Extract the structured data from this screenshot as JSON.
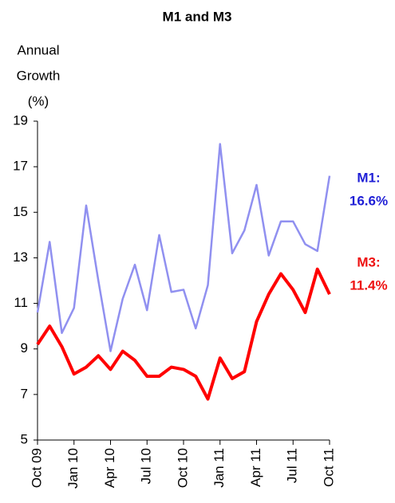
{
  "chart_data": {
    "type": "line",
    "title": "M1 and M3",
    "ylabel": [
      "Annual",
      "Growth",
      "(%)"
    ],
    "categories": [
      "Oct 09",
      null,
      null,
      "Jan 10",
      null,
      null,
      "Apr 10",
      null,
      null,
      "Jul 10",
      null,
      null,
      "Oct 10",
      null,
      null,
      "Jan 11",
      null,
      null,
      "Apr 11",
      null,
      null,
      "Jul 11",
      null,
      null,
      "Oct 11"
    ],
    "series": [
      {
        "name": "M1",
        "color": "#9090f0",
        "values": [
          10.6,
          13.7,
          9.7,
          10.8,
          15.3,
          12.0,
          8.9,
          11.2,
          12.7,
          10.7,
          14.0,
          11.5,
          11.6,
          9.9,
          11.8,
          18.0,
          13.2,
          14.2,
          16.2,
          13.1,
          14.6,
          14.6,
          13.6,
          13.3,
          16.6
        ]
      },
      {
        "name": "M3",
        "color": "#ff0000",
        "values": [
          9.2,
          10.0,
          9.1,
          7.9,
          8.2,
          8.7,
          8.1,
          8.9,
          8.5,
          7.8,
          7.8,
          8.2,
          8.1,
          7.8,
          6.8,
          8.6,
          7.7,
          8.0,
          10.2,
          11.4,
          12.3,
          11.6,
          10.6,
          12.5,
          11.4
        ]
      }
    ],
    "annotations": [
      {
        "lines": [
          "M1:",
          "16.6%"
        ],
        "color": "#1f1fd6"
      },
      {
        "lines": [
          "M3:",
          "11.4%"
        ],
        "color": "#ee1111"
      }
    ],
    "ylim": [
      5,
      19
    ],
    "yticks": [
      5,
      7,
      9,
      11,
      13,
      15,
      17,
      19
    ],
    "grid": false
  }
}
